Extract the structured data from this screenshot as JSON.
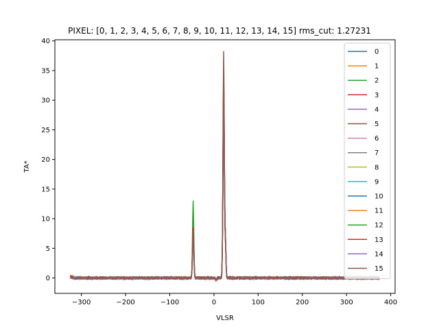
{
  "chart_data": {
    "type": "line",
    "title": "PIXEL: [0, 1, 2, 3, 4, 5, 6, 7, 8, 9, 10, 11, 12, 13, 14, 15]   rms_cut: 1.27231",
    "xlabel": "VLSR",
    "ylabel": "TA*",
    "xlim": [
      -360,
      410
    ],
    "ylim": [
      -2.6,
      40.2
    ],
    "xticks": [
      -300,
      -200,
      -100,
      0,
      100,
      200,
      300,
      400
    ],
    "yticks": [
      0,
      5,
      10,
      15,
      20,
      25,
      30,
      35,
      40
    ],
    "x_range": [
      -325,
      375
    ],
    "legend_placement": "top-right",
    "grid": false,
    "series": [
      {
        "name": "0",
        "color": "#1f77b4",
        "noise": 0.15,
        "peaks": [
          [
            -47,
            7.8,
            1.5
          ],
          [
            22,
            30.5,
            1.6
          ],
          [
            26,
            5.8,
            1.2
          ]
        ]
      },
      {
        "name": "1",
        "color": "#ff7f0e",
        "noise": 0.15,
        "peaks": [
          [
            -47,
            7.5,
            1.5
          ],
          [
            22,
            29.8,
            1.6
          ],
          [
            26,
            5.5,
            1.2
          ]
        ]
      },
      {
        "name": "2",
        "color": "#2ca02c",
        "noise": 0.15,
        "peaks": [
          [
            -47,
            13.0,
            1.4
          ],
          [
            22,
            32.0,
            1.6
          ],
          [
            26,
            5.9,
            1.2
          ]
        ]
      },
      {
        "name": "3",
        "color": "#d62728",
        "noise": 0.15,
        "peaks": [
          [
            -47,
            8.5,
            1.5
          ],
          [
            22,
            33.5,
            1.6
          ],
          [
            26,
            6.0,
            1.2
          ]
        ]
      },
      {
        "name": "4",
        "color": "#9467bd",
        "noise": 0.15,
        "peaks": [
          [
            -47,
            7.2,
            1.5
          ],
          [
            22,
            30.0,
            1.6
          ],
          [
            26,
            5.2,
            1.2
          ]
        ]
      },
      {
        "name": "5",
        "color": "#8c564b",
        "noise": 0.15,
        "peaks": [
          [
            -47,
            7.6,
            1.5
          ],
          [
            22,
            31.0,
            1.6
          ],
          [
            26,
            5.6,
            1.2
          ]
        ]
      },
      {
        "name": "6",
        "color": "#e377c2",
        "noise": 0.15,
        "peaks": [
          [
            -47,
            7.0,
            1.5
          ],
          [
            22,
            29.0,
            1.6
          ],
          [
            26,
            5.0,
            1.2
          ]
        ]
      },
      {
        "name": "7",
        "color": "#7f7f7f",
        "noise": 0.15,
        "peaks": [
          [
            -47,
            7.3,
            1.5
          ],
          [
            22,
            29.5,
            1.6
          ],
          [
            26,
            5.3,
            1.2
          ]
        ]
      },
      {
        "name": "8",
        "color": "#bcbd22",
        "noise": 0.15,
        "peaks": [
          [
            -47,
            7.1,
            1.5
          ],
          [
            22,
            28.8,
            1.6
          ],
          [
            26,
            5.1,
            1.2
          ]
        ]
      },
      {
        "name": "9",
        "color": "#17becf",
        "noise": 0.15,
        "peaks": [
          [
            -47,
            7.4,
            1.5
          ],
          [
            22,
            29.2,
            1.6
          ],
          [
            26,
            5.4,
            1.2
          ]
        ]
      },
      {
        "name": "10",
        "color": "#1f77b4",
        "noise": 0.15,
        "peaks": [
          [
            -47,
            7.7,
            1.5
          ],
          [
            22,
            30.2,
            1.6
          ],
          [
            26,
            5.7,
            1.2
          ]
        ]
      },
      {
        "name": "11",
        "color": "#ff7f0e",
        "noise": 0.15,
        "peaks": [
          [
            -47,
            7.5,
            1.5
          ],
          [
            22,
            30.8,
            1.6
          ],
          [
            26,
            5.5,
            1.2
          ]
        ]
      },
      {
        "name": "12",
        "color": "#2ca02c",
        "noise": 0.15,
        "peaks": [
          [
            -47,
            8.0,
            1.5
          ],
          [
            22,
            31.5,
            1.6
          ],
          [
            26,
            5.8,
            1.2
          ]
        ]
      },
      {
        "name": "13",
        "color": "#d62728",
        "noise": 0.15,
        "peaks": [
          [
            -47,
            8.3,
            1.5
          ],
          [
            22,
            32.5,
            1.6
          ],
          [
            26,
            5.9,
            1.2
          ]
        ]
      },
      {
        "name": "14",
        "color": "#9467bd",
        "noise": 0.15,
        "peaks": [
          [
            -47,
            7.2,
            1.5
          ],
          [
            22,
            29.6,
            1.6
          ],
          [
            26,
            5.3,
            1.2
          ]
        ]
      },
      {
        "name": "15",
        "color": "#8c564b",
        "noise": 0.15,
        "peaks": [
          [
            -47,
            7.9,
            1.5
          ],
          [
            22,
            38.3,
            1.5
          ],
          [
            26,
            6.1,
            1.2
          ]
        ]
      }
    ]
  }
}
